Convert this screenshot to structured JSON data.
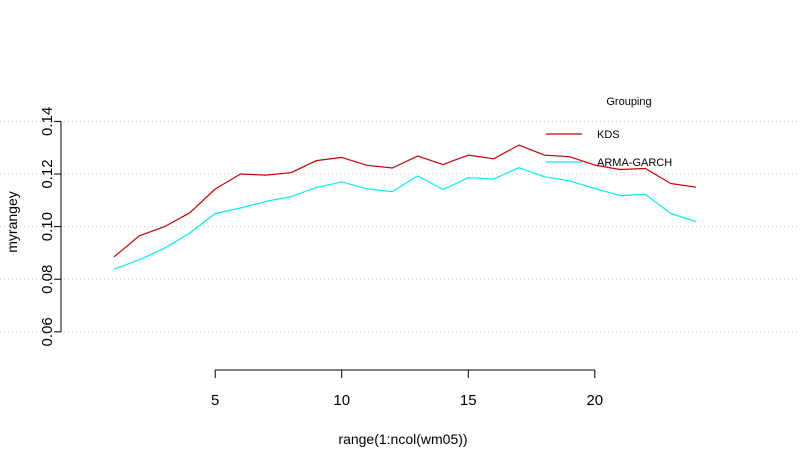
{
  "chart_data": {
    "type": "line",
    "xlabel": "range(1:ncol(wm05))",
    "ylabel": "myrangey",
    "xlim": [
      -0.5,
      25.5
    ],
    "ylim": [
      0.055,
      0.147
    ],
    "x_ticks": [
      5,
      10,
      15,
      20
    ],
    "x_tick_labels": [
      "5",
      "10",
      "15",
      "20"
    ],
    "y_ticks": [
      0.06,
      0.08,
      0.1,
      0.12,
      0.14
    ],
    "y_tick_labels": [
      "0.06",
      "0.08",
      "0.10",
      "0.12",
      "0.14"
    ],
    "grid": "horizontal-dotted",
    "legend": {
      "title": "Grouping",
      "placement": "top-right",
      "entries": [
        "KDS",
        "ARMA-GARCH"
      ]
    },
    "x": [
      1,
      2,
      3,
      4,
      5,
      6,
      7,
      8,
      9,
      10,
      11,
      12,
      13,
      14,
      15,
      16,
      17,
      18,
      19,
      20,
      21,
      22,
      23,
      24
    ],
    "series": [
      {
        "name": "KDS",
        "color": "#cc0000",
        "values": [
          0.0885,
          0.0965,
          0.1,
          0.1053,
          0.1143,
          0.12,
          0.1196,
          0.1205,
          0.1251,
          0.1263,
          0.1233,
          0.1223,
          0.1268,
          0.1236,
          0.1272,
          0.1258,
          0.131,
          0.1272,
          0.1266,
          0.1234,
          0.1217,
          0.1221,
          0.1164,
          0.115
        ]
      },
      {
        "name": "ARMA-GARCH",
        "color": "#00f0f0",
        "values": [
          0.0838,
          0.0874,
          0.0918,
          0.0976,
          0.105,
          0.1071,
          0.1096,
          0.1114,
          0.1149,
          0.117,
          0.1144,
          0.1133,
          0.1193,
          0.1141,
          0.1186,
          0.1181,
          0.1224,
          0.119,
          0.1174,
          0.1145,
          0.1118,
          0.1123,
          0.105,
          0.1019
        ]
      }
    ]
  }
}
